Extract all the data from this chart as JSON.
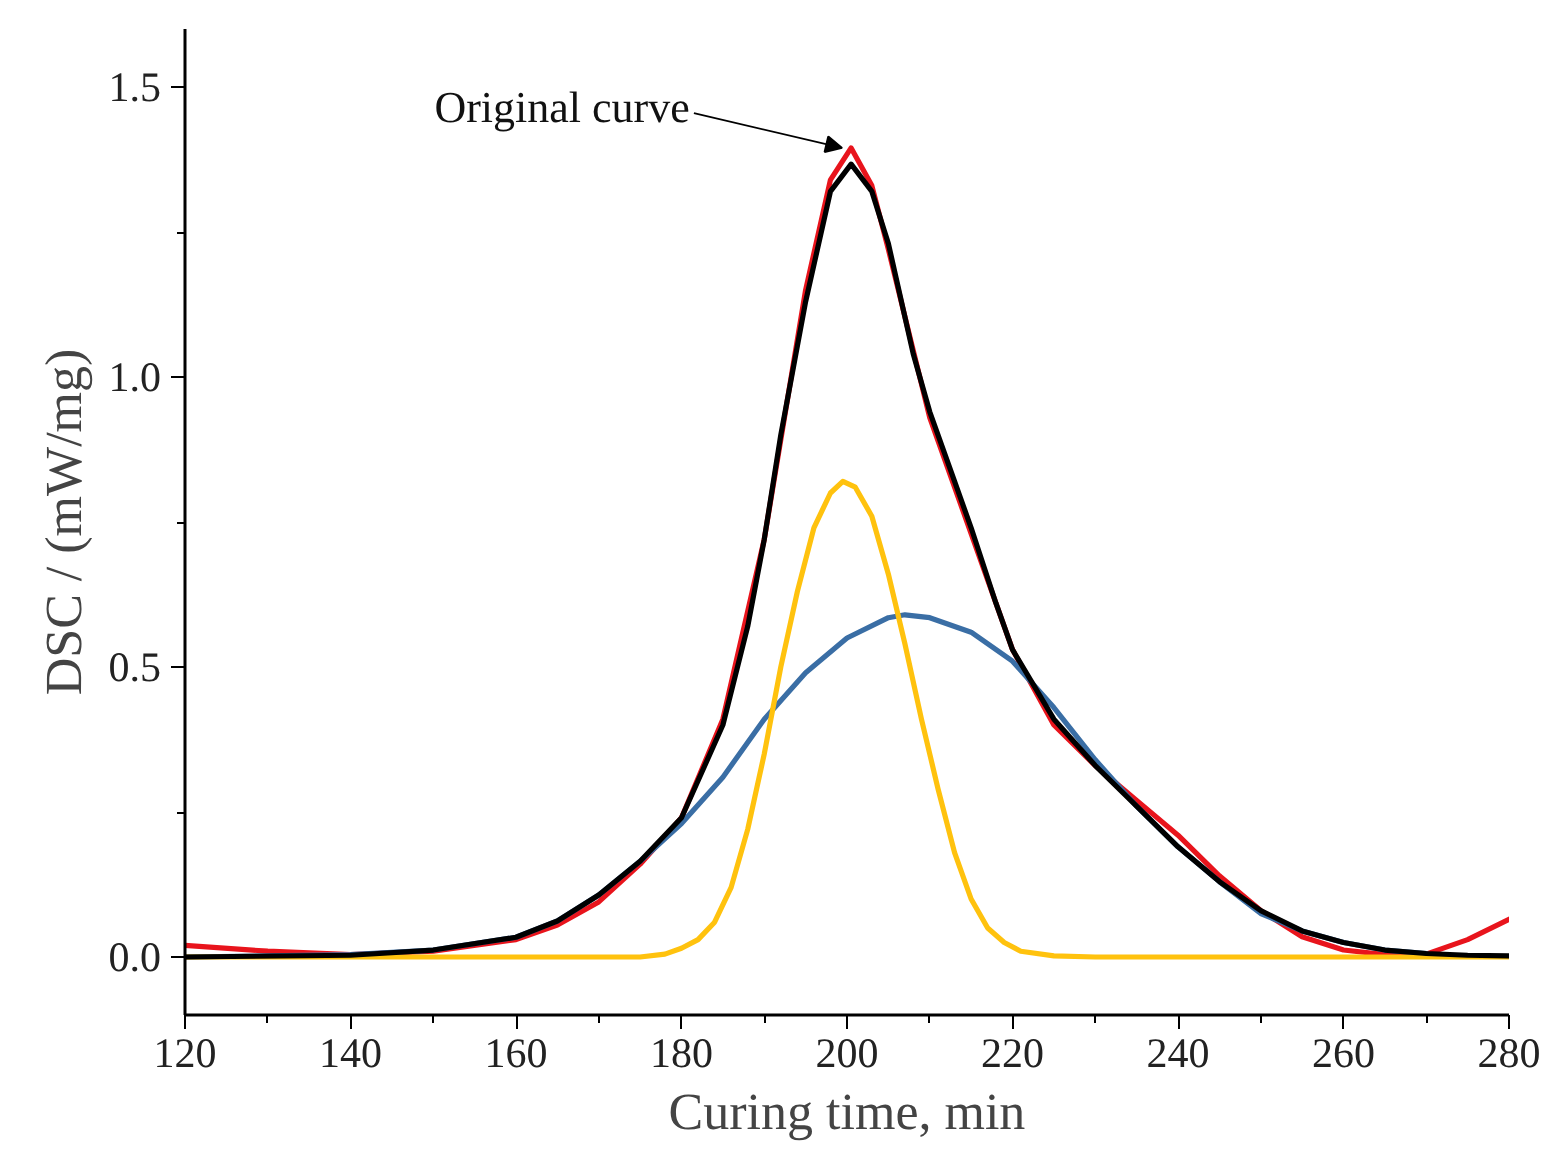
{
  "chart_data": {
    "type": "line",
    "xlabel": "Curing time, min",
    "ylabel": "DSC / (mW/mg)",
    "xlim": [
      120,
      280
    ],
    "ylim": [
      -0.1,
      1.6
    ],
    "xticks": [
      120,
      {
        "value": 130,
        "label": null
      },
      140,
      {
        "value": 150,
        "label": null
      },
      160,
      {
        "value": 170,
        "label": null
      },
      180,
      {
        "value": 190,
        "label": null
      },
      200,
      {
        "value": 210,
        "label": null
      },
      220,
      {
        "value": 230,
        "label": null
      },
      240,
      {
        "value": 250,
        "label": null
      },
      260,
      {
        "value": 270,
        "label": null
      },
      280
    ],
    "yticks": [
      {
        "value": 0,
        "label": "0.0"
      },
      {
        "value": 0.25,
        "label": null
      },
      0.5,
      {
        "value": 0.75,
        "label": null
      },
      {
        "value": 1,
        "label": "1.0"
      },
      {
        "value": 1.25,
        "label": null
      },
      1.5
    ],
    "grid": false,
    "annotations": [
      {
        "text": "Original curve",
        "x": 200,
        "y": 1.39
      }
    ],
    "series": [
      {
        "color": "#e8141c",
        "x": [
          120,
          130,
          140,
          150,
          160,
          165,
          170,
          175,
          180,
          185,
          190,
          195,
          198,
          200.5,
          203,
          205,
          210,
          215,
          220,
          225,
          230,
          235,
          240,
          245,
          250,
          255,
          260,
          265,
          270,
          275,
          280
        ],
        "values": [
          0.02,
          0.01,
          0.004,
          0.01,
          0.03,
          0.055,
          0.095,
          0.16,
          0.24,
          0.41,
          0.72,
          1.15,
          1.34,
          1.395,
          1.33,
          1.22,
          0.93,
          0.73,
          0.53,
          0.4,
          0.33,
          0.27,
          0.21,
          0.14,
          0.08,
          0.035,
          0.012,
          0.004,
          0.005,
          0.03,
          0.065
        ]
      },
      {
        "color": "#3a6ea5",
        "x": [
          120,
          130,
          140,
          150,
          160,
          165,
          170,
          175,
          180,
          185,
          190,
          195,
          200,
          205,
          207,
          210,
          215,
          220,
          225,
          230,
          235,
          240,
          245,
          250,
          255,
          260,
          265,
          270
        ],
        "values": [
          0,
          0.002,
          0.004,
          0.012,
          0.034,
          0.062,
          0.107,
          0.165,
          0.23,
          0.31,
          0.41,
          0.49,
          0.55,
          0.585,
          0.59,
          0.585,
          0.56,
          0.51,
          0.43,
          0.34,
          0.26,
          0.19,
          0.13,
          0.075,
          0.045,
          0.025,
          0.012,
          0.006
        ]
      },
      {
        "color": "#ffc20e",
        "x": [
          120,
          175,
          178,
          180,
          182,
          184,
          186,
          188,
          190,
          192,
          194,
          196,
          198,
          199.5,
          201,
          203,
          205,
          207,
          209,
          211,
          213,
          215,
          217,
          219,
          221,
          225,
          230,
          280
        ],
        "values": [
          0,
          0,
          0.005,
          0.015,
          0.03,
          0.06,
          0.12,
          0.22,
          0.35,
          0.5,
          0.63,
          0.74,
          0.8,
          0.82,
          0.81,
          0.76,
          0.66,
          0.54,
          0.41,
          0.29,
          0.18,
          0.1,
          0.05,
          0.025,
          0.01,
          0.002,
          0,
          0
        ]
      },
      {
        "color": "#000000",
        "x": [
          120,
          140,
          150,
          160,
          165,
          170,
          175,
          180,
          185,
          188,
          190,
          192,
          195,
          198,
          200.5,
          203,
          205,
          208,
          210,
          213,
          215,
          218,
          220,
          225,
          230,
          235,
          240,
          245,
          250,
          255,
          260,
          265,
          270,
          275,
          280
        ],
        "values": [
          0,
          0.003,
          0.012,
          0.034,
          0.062,
          0.107,
          0.165,
          0.24,
          0.4,
          0.57,
          0.72,
          0.9,
          1.13,
          1.32,
          1.367,
          1.32,
          1.23,
          1.04,
          0.94,
          0.82,
          0.74,
          0.61,
          0.53,
          0.41,
          0.33,
          0.26,
          0.19,
          0.13,
          0.08,
          0.045,
          0.025,
          0.012,
          0.006,
          0.003,
          0.002
        ]
      }
    ]
  }
}
